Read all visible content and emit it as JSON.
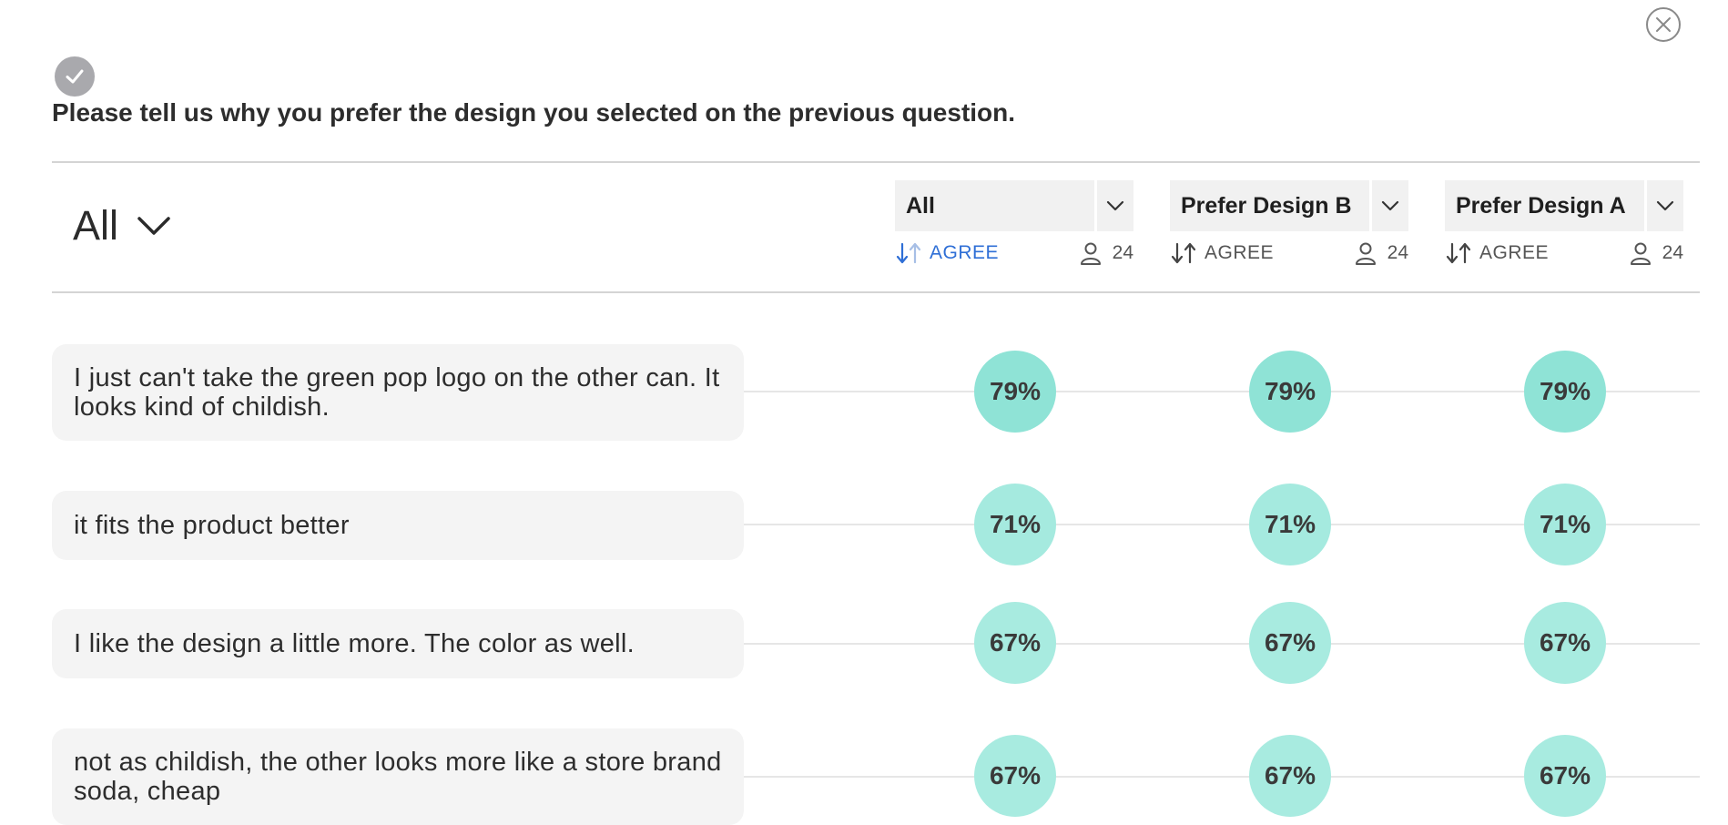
{
  "question": "Please tell us why you prefer the design you selected on the previous question.",
  "filter": {
    "label": "All"
  },
  "columns": [
    {
      "label": "All",
      "sort_label": "AGREE",
      "count": "24",
      "active": true
    },
    {
      "label": "Prefer Design B",
      "sort_label": "AGREE",
      "count": "24",
      "active": false
    },
    {
      "label": "Prefer Design A",
      "sort_label": "AGREE",
      "count": "24",
      "active": false
    }
  ],
  "rows": [
    {
      "text": "I just can't take the green pop logo on the other can. It looks kind of childish.",
      "values": [
        "79%",
        "79%",
        "79%"
      ],
      "percent": 79
    },
    {
      "text": "it fits the product better",
      "values": [
        "71%",
        "71%",
        "71%"
      ],
      "percent": 71
    },
    {
      "text": "I like the design a little more. The color as well.",
      "values": [
        "67%",
        "67%",
        "67%"
      ],
      "percent": 67
    },
    {
      "text": "not as childish, the other looks more like a store brand soda, cheap",
      "values": [
        "67%",
        "67%",
        "67%"
      ],
      "percent": 67
    }
  ],
  "colors": {
    "accent_blue": "#2f6fd6",
    "bubble_79": "#8fe3d6",
    "bubble_71": "#a5eadf",
    "bubble_67": "#a8ebe0",
    "check_badge": "#a9a9ad"
  },
  "icons": {
    "close": "close-icon",
    "check": "check-icon",
    "chevron": "chevron-down-icon",
    "sort": "sort-arrows-icon",
    "person": "person-icon"
  }
}
